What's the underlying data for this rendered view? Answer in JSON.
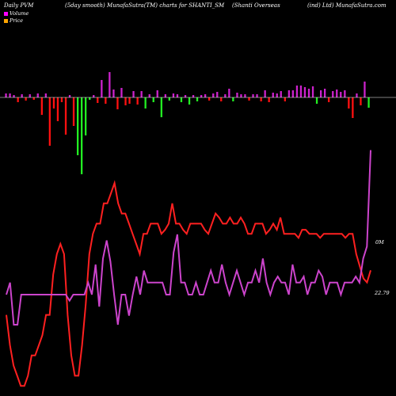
{
  "header": {
    "left": "Daily PVM",
    "center_left": "(5day smooth) MunafaSutra(TM) charts for SHANTI_SM",
    "center_right": "(Shanti  Overseas",
    "right": "(ind) Ltd) MunafaSutra.com"
  },
  "legend": {
    "volume": "Volume",
    "price": "Price"
  },
  "colors": {
    "background": "#000000",
    "volume_line": "#cc44cc",
    "price_line": "#ff2020",
    "bar_up": "#cc22cc",
    "bar_down_red": "#ff1010",
    "bar_down_green": "#22ee22",
    "baseline": "#ffffff"
  },
  "chart_data": {
    "type": "line",
    "end_labels": {
      "volume": "0M",
      "price": "22.79"
    },
    "bars": {
      "description_values_are_relative_magnitudes": true,
      "items": [
        {
          "dir": "up",
          "v": 5,
          "c": "up"
        },
        {
          "dir": "up",
          "v": 5,
          "c": "up"
        },
        {
          "dir": "up",
          "v": 3,
          "c": "up"
        },
        {
          "dir": "down",
          "v": 6,
          "c": "red"
        },
        {
          "dir": "up",
          "v": 4,
          "c": "up"
        },
        {
          "dir": "down",
          "v": 4,
          "c": "red"
        },
        {
          "dir": "up",
          "v": 4,
          "c": "up"
        },
        {
          "dir": "down",
          "v": 3,
          "c": "red"
        },
        {
          "dir": "up",
          "v": 5,
          "c": "up"
        },
        {
          "dir": "down",
          "v": 22,
          "c": "red"
        },
        {
          "dir": "up",
          "v": 5,
          "c": "up"
        },
        {
          "dir": "down",
          "v": 61,
          "c": "red"
        },
        {
          "dir": "down",
          "v": 14,
          "c": "red"
        },
        {
          "dir": "down",
          "v": 30,
          "c": "red"
        },
        {
          "dir": "down",
          "v": 6,
          "c": "red"
        },
        {
          "dir": "down",
          "v": 47,
          "c": "red"
        },
        {
          "dir": "up",
          "v": 3,
          "c": "up"
        },
        {
          "dir": "down",
          "v": 36,
          "c": "red"
        },
        {
          "dir": "down",
          "v": 73,
          "c": "green"
        },
        {
          "dir": "down",
          "v": 97,
          "c": "green"
        },
        {
          "dir": "down",
          "v": 48,
          "c": "green"
        },
        {
          "dir": "down",
          "v": 3,
          "c": "green"
        },
        {
          "dir": "up",
          "v": 3,
          "c": "up"
        },
        {
          "dir": "down",
          "v": 7,
          "c": "red"
        },
        {
          "dir": "up",
          "v": 22,
          "c": "up"
        },
        {
          "dir": "down",
          "v": 8,
          "c": "red"
        },
        {
          "dir": "up",
          "v": 32,
          "c": "up"
        },
        {
          "dir": "up",
          "v": 10,
          "c": "up"
        },
        {
          "dir": "down",
          "v": 15,
          "c": "red"
        },
        {
          "dir": "up",
          "v": 12,
          "c": "up"
        },
        {
          "dir": "down",
          "v": 10,
          "c": "red"
        },
        {
          "dir": "down",
          "v": 8,
          "c": "red"
        },
        {
          "dir": "up",
          "v": 8,
          "c": "up"
        },
        {
          "dir": "down",
          "v": 9,
          "c": "red"
        },
        {
          "dir": "up",
          "v": 8,
          "c": "up"
        },
        {
          "dir": "down",
          "v": 14,
          "c": "green"
        },
        {
          "dir": "up",
          "v": 4,
          "c": "up"
        },
        {
          "dir": "down",
          "v": 6,
          "c": "green"
        },
        {
          "dir": "up",
          "v": 9,
          "c": "up"
        },
        {
          "dir": "down",
          "v": 25,
          "c": "green"
        },
        {
          "dir": "up",
          "v": 4,
          "c": "up"
        },
        {
          "dir": "down",
          "v": 4,
          "c": "green"
        },
        {
          "dir": "up",
          "v": 5,
          "c": "up"
        },
        {
          "dir": "up",
          "v": 4,
          "c": "up"
        },
        {
          "dir": "down",
          "v": 6,
          "c": "green"
        },
        {
          "dir": "up",
          "v": 3,
          "c": "up"
        },
        {
          "dir": "down",
          "v": 9,
          "c": "green"
        },
        {
          "dir": "up",
          "v": 3,
          "c": "up"
        },
        {
          "dir": "down",
          "v": 5,
          "c": "green"
        },
        {
          "dir": "up",
          "v": 3,
          "c": "up"
        },
        {
          "dir": "up",
          "v": 4,
          "c": "up"
        },
        {
          "dir": "down",
          "v": 4,
          "c": "red"
        },
        {
          "dir": "up",
          "v": 5,
          "c": "up"
        },
        {
          "dir": "up",
          "v": 7,
          "c": "up"
        },
        {
          "dir": "down",
          "v": 5,
          "c": "red"
        },
        {
          "dir": "up",
          "v": 4,
          "c": "up"
        },
        {
          "dir": "up",
          "v": 11,
          "c": "up"
        },
        {
          "dir": "down",
          "v": 5,
          "c": "green"
        },
        {
          "dir": "up",
          "v": 6,
          "c": "up"
        },
        {
          "dir": "up",
          "v": 4,
          "c": "up"
        },
        {
          "dir": "up",
          "v": 4,
          "c": "up"
        },
        {
          "dir": "down",
          "v": 4,
          "c": "red"
        },
        {
          "dir": "up",
          "v": 4,
          "c": "up"
        },
        {
          "dir": "up",
          "v": 4,
          "c": "up"
        },
        {
          "dir": "down",
          "v": 5,
          "c": "red"
        },
        {
          "dir": "up",
          "v": 9,
          "c": "up"
        },
        {
          "dir": "down",
          "v": 6,
          "c": "red"
        },
        {
          "dir": "up",
          "v": 6,
          "c": "up"
        },
        {
          "dir": "up",
          "v": 5,
          "c": "up"
        },
        {
          "dir": "up",
          "v": 8,
          "c": "up"
        },
        {
          "dir": "down",
          "v": 5,
          "c": "red"
        },
        {
          "dir": "up",
          "v": 9,
          "c": "up"
        },
        {
          "dir": "up",
          "v": 9,
          "c": "up"
        },
        {
          "dir": "up",
          "v": 15,
          "c": "up"
        },
        {
          "dir": "up",
          "v": 15,
          "c": "up"
        },
        {
          "dir": "up",
          "v": 13,
          "c": "up"
        },
        {
          "dir": "up",
          "v": 11,
          "c": "up"
        },
        {
          "dir": "up",
          "v": 14,
          "c": "up"
        },
        {
          "dir": "down",
          "v": 8,
          "c": "green"
        },
        {
          "dir": "up",
          "v": 9,
          "c": "up"
        },
        {
          "dir": "up",
          "v": 11,
          "c": "up"
        },
        {
          "dir": "down",
          "v": 6,
          "c": "red"
        },
        {
          "dir": "up",
          "v": 8,
          "c": "up"
        },
        {
          "dir": "up",
          "v": 10,
          "c": "up"
        },
        {
          "dir": "up",
          "v": 7,
          "c": "up"
        },
        {
          "dir": "up",
          "v": 9,
          "c": "up"
        },
        {
          "dir": "down",
          "v": 14,
          "c": "red"
        },
        {
          "dir": "down",
          "v": 26,
          "c": "red"
        },
        {
          "dir": "up",
          "v": 5,
          "c": "up"
        },
        {
          "dir": "down",
          "v": 10,
          "c": "red"
        },
        {
          "dir": "up",
          "v": 20,
          "c": "up"
        },
        {
          "dir": "down",
          "v": 13,
          "c": "green"
        }
      ]
    },
    "volume_series": [
      24,
      28,
      14,
      14,
      24,
      24,
      24,
      24,
      24,
      24,
      24,
      24,
      24,
      24,
      24,
      24,
      24,
      22,
      24,
      24,
      24,
      24,
      28,
      24,
      34,
      20,
      36,
      42,
      35,
      24,
      14,
      24,
      24,
      17,
      24,
      30,
      24,
      32,
      28,
      28,
      28,
      28,
      28,
      24,
      24,
      38,
      44,
      28,
      28,
      24,
      24,
      28,
      24,
      24,
      28,
      32,
      28,
      28,
      34,
      28,
      24,
      28,
      32,
      28,
      24,
      28,
      28,
      32,
      28,
      36,
      28,
      24,
      28,
      30,
      28,
      28,
      24,
      34,
      28,
      28,
      30,
      24,
      28,
      28,
      32,
      30,
      24,
      28,
      28,
      28,
      24,
      28,
      28,
      28,
      30,
      28,
      36,
      40,
      72
    ],
    "price_series": [
      40,
      25,
      15,
      10,
      5,
      5,
      10,
      20,
      20,
      25,
      30,
      40,
      40,
      60,
      70,
      75,
      70,
      40,
      20,
      10,
      10,
      25,
      45,
      70,
      80,
      85,
      85,
      95,
      95,
      100,
      105,
      95,
      90,
      90,
      85,
      80,
      75,
      70,
      80,
      80,
      85,
      85,
      85,
      80,
      82,
      85,
      95,
      85,
      85,
      82,
      80,
      85,
      85,
      85,
      85,
      82,
      80,
      85,
      90,
      88,
      85,
      85,
      88,
      85,
      85,
      88,
      85,
      80,
      80,
      85,
      85,
      85,
      80,
      82,
      85,
      82,
      88,
      80,
      80,
      80,
      80,
      78,
      82,
      82,
      80,
      80,
      80,
      78,
      80,
      80,
      80,
      80,
      80,
      80,
      78,
      80,
      80,
      70,
      64,
      58,
      56,
      62
    ]
  }
}
